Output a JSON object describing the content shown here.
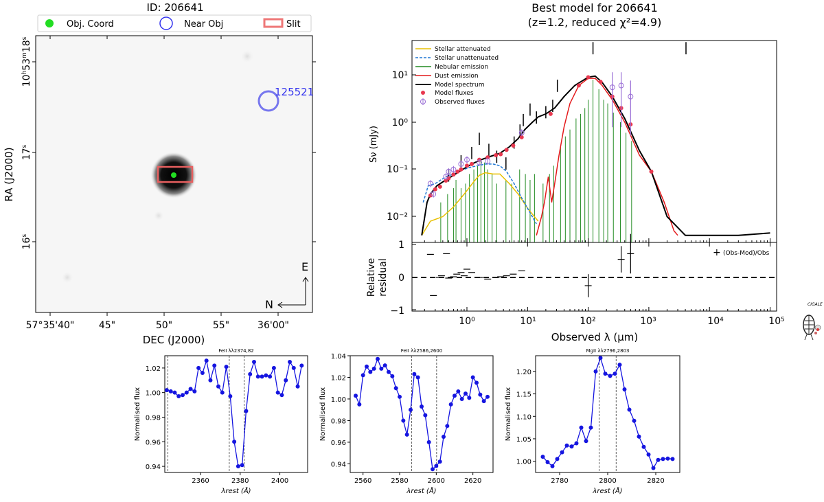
{
  "cutout": {
    "id_title": "ID: 206641",
    "legend": [
      "Obj. Coord",
      "Near Obj",
      "Slit"
    ],
    "near_object_label": "125521",
    "ra_label": "RA (J2000)",
    "dec_label": "DEC (J2000)",
    "ra_ticks": [
      {
        "h": "10",
        "hs": "h",
        "m": "53",
        "ms": "m",
        "s": "18",
        "ss": "s"
      },
      {
        "h": "",
        "hs": "",
        "m": "",
        "ms": "",
        "s": "17",
        "ss": "s"
      },
      {
        "h": "",
        "hs": "",
        "m": "",
        "ms": "",
        "s": "16",
        "ss": "s"
      }
    ],
    "dec_ticks": [
      "57°35'40\"",
      "45\"",
      "50\"",
      "55\"",
      "36'00\""
    ],
    "compass": {
      "east": "E",
      "north": "N"
    },
    "colors": {
      "obj": "#22dd22",
      "near": "#3333ee",
      "slit": "#ee4444"
    }
  },
  "sed": {
    "title_line1": "Best model for 206641",
    "title_line2": "(z=1.2, reduced χ²=4.9)",
    "ylabel": "Sν (mJy)",
    "xlabel": "Observed λ (μm)",
    "yticks": [
      "10¹",
      "10⁰",
      "10⁻¹",
      "10⁻²"
    ],
    "xticks": [
      "10⁰",
      "10¹",
      "10²",
      "10³",
      "10⁴",
      "10⁵"
    ],
    "legend": [
      "Stellar attenuated",
      "Stellar unattenuated",
      "Nebular emission",
      "Dust emission",
      "Model spectrum",
      "Model fluxes",
      "Observed fluxes"
    ],
    "colors": {
      "stellar_att": "#e8c000",
      "stellar_unatt": "#1f77d4",
      "nebular": "#228b22",
      "dust": "#e41a1c",
      "model": "#000000",
      "model_flux": "#e8384f",
      "obs_flux": "#9a6fd6"
    },
    "residual": {
      "ylabel1": "Relative",
      "ylabel2": "residual",
      "legend": "(Obs-Mod)/Obs",
      "yticks": [
        "1",
        "0",
        "−1"
      ],
      "points": [
        {
          "x": 0.25,
          "y": 0.7
        },
        {
          "x": 0.28,
          "y": -0.55
        },
        {
          "x": 0.35,
          "y": 0.0
        },
        {
          "x": 0.38,
          "y": 0.05
        },
        {
          "x": 0.46,
          "y": 0.72
        },
        {
          "x": 0.5,
          "y": -0.02
        },
        {
          "x": 0.6,
          "y": 0.02
        },
        {
          "x": 0.68,
          "y": 0.1
        },
        {
          "x": 0.8,
          "y": 0.15
        },
        {
          "x": 0.9,
          "y": 0.05
        },
        {
          "x": 1.0,
          "y": 0.25
        },
        {
          "x": 1.2,
          "y": 0.15
        },
        {
          "x": 1.6,
          "y": 0.0
        },
        {
          "x": 2.2,
          "y": -0.05
        },
        {
          "x": 3.0,
          "y": 0.0
        },
        {
          "x": 3.6,
          "y": 0.02
        },
        {
          "x": 4.5,
          "y": 0.05
        },
        {
          "x": 5.8,
          "y": 0.1
        },
        {
          "x": 8.0,
          "y": 0.2
        }
      ],
      "errorbars": [
        {
          "x": 100,
          "y": -0.25,
          "err": 0.35
        },
        {
          "x": 350,
          "y": 0.55,
          "err": 0.4
        },
        {
          "x": 500,
          "y": 0.72,
          "err": 0.6
        }
      ]
    }
  },
  "chart_data": [
    {
      "type": "line",
      "title": "FeII λλ2374,82",
      "xlabel": "λrest (Å)",
      "ylabel": "Normalised flux",
      "xlim": [
        2342,
        2414
      ],
      "ylim": [
        0.935,
        1.03
      ],
      "xticks": [
        2360,
        2380,
        2400
      ],
      "yticks": [
        0.94,
        0.96,
        0.98,
        1.0,
        1.02
      ],
      "vlines": [
        2343.5,
        2374.5,
        2382.0
      ],
      "x": [
        2343,
        2345,
        2347,
        2349,
        2351,
        2353,
        2355,
        2357,
        2359,
        2361,
        2363,
        2365,
        2367,
        2369,
        2371,
        2373,
        2375,
        2377,
        2379,
        2381,
        2383,
        2385,
        2387,
        2389,
        2391,
        2393,
        2395,
        2397,
        2399,
        2401,
        2403,
        2405,
        2407,
        2409,
        2411
      ],
      "y": [
        1.002,
        1.001,
        1.0,
        0.997,
        0.998,
        1.0,
        1.003,
        1.001,
        1.02,
        1.016,
        1.026,
        1.01,
        1.022,
        1.005,
        1.0,
        1.021,
        0.997,
        0.96,
        0.94,
        0.941,
        0.985,
        1.015,
        1.025,
        1.013,
        1.013,
        1.014,
        1.013,
        1.02,
        1.0,
        0.998,
        1.01,
        1.025,
        1.02,
        1.005,
        1.022
      ]
    },
    {
      "type": "line",
      "title": "FeII λλ2586,2600",
      "xlabel": "λrest (Å)",
      "ylabel": "Normalised flux",
      "xlim": [
        2553,
        2631
      ],
      "ylim": [
        0.932,
        1.04
      ],
      "xticks": [
        2560,
        2580,
        2600,
        2620
      ],
      "yticks": [
        0.94,
        0.96,
        0.98,
        1.0,
        1.02,
        1.04
      ],
      "vlines": [
        2586.5,
        2600.2
      ],
      "x": [
        2556,
        2558,
        2560,
        2562,
        2564,
        2566,
        2568,
        2570,
        2572,
        2574,
        2576,
        2578,
        2580,
        2582,
        2584,
        2586,
        2588,
        2590,
        2592,
        2594,
        2596,
        2598,
        2600,
        2602,
        2604,
        2606,
        2608,
        2610,
        2612,
        2614,
        2616,
        2618,
        2620,
        2622,
        2624,
        2626,
        2628
      ],
      "y": [
        1.003,
        0.995,
        1.022,
        1.03,
        1.025,
        1.028,
        1.037,
        1.028,
        1.031,
        1.025,
        1.021,
        1.01,
        1.002,
        0.98,
        0.967,
        0.99,
        1.023,
        1.02,
        0.993,
        0.985,
        0.96,
        0.935,
        0.938,
        0.942,
        0.965,
        0.975,
        0.995,
        1.003,
        1.007,
        1.0,
        1.005,
        1.001,
        1.02,
        1.015,
        1.004,
        0.998,
        1.002
      ]
    },
    {
      "type": "line",
      "title": "MgII λλ2796,2803",
      "xlabel": "λrest (Å)",
      "ylabel": "Normalised flux",
      "xlim": [
        2770,
        2830
      ],
      "ylim": [
        0.975,
        1.235
      ],
      "xticks": [
        2780,
        2800,
        2820
      ],
      "yticks": [
        1.0,
        1.05,
        1.1,
        1.15,
        1.2
      ],
      "vlines": [
        2796.4,
        2803.5
      ],
      "x": [
        2773,
        2775,
        2777,
        2779,
        2781,
        2783,
        2785,
        2787,
        2789,
        2791,
        2793,
        2795,
        2797,
        2799,
        2801,
        2803,
        2805,
        2807,
        2809,
        2811,
        2813,
        2815,
        2817,
        2819,
        2821,
        2823,
        2825,
        2827
      ],
      "y": [
        1.01,
        0.998,
        0.989,
        1.005,
        1.02,
        1.035,
        1.033,
        1.04,
        1.075,
        1.045,
        1.075,
        1.2,
        1.23,
        1.195,
        1.19,
        1.195,
        1.215,
        1.16,
        1.115,
        1.09,
        1.055,
        1.032,
        1.015,
        0.985,
        1.003,
        1.005,
        1.006,
        1.005
      ]
    }
  ]
}
